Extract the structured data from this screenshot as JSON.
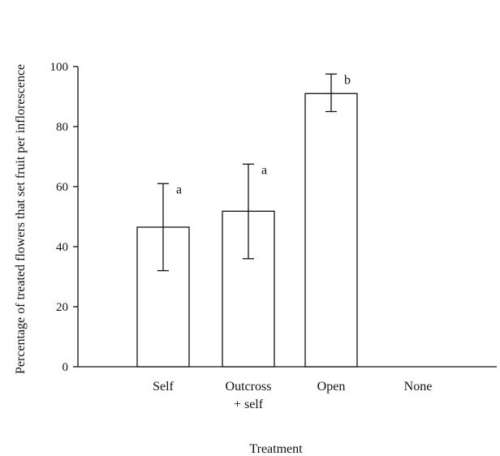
{
  "chart_data": {
    "type": "bar",
    "title": "",
    "xlabel": "Treatment",
    "ylabel": "Percentage of treated flowers that set fruit per inflorescence",
    "ylim": [
      0,
      100
    ],
    "yticks": [
      "0",
      "20",
      "40",
      "60",
      "80",
      "100"
    ],
    "categories": [
      [
        "Self"
      ],
      [
        "Outcross",
        "+ self"
      ],
      [
        "Open"
      ],
      [
        "None"
      ]
    ],
    "values": [
      46.5,
      51.8,
      91.0,
      0
    ],
    "error_low": [
      32.0,
      36.0,
      85.0,
      null
    ],
    "error_high": [
      61.0,
      67.5,
      97.5,
      null
    ],
    "significance_letters": [
      "a",
      "a",
      "b",
      ""
    ],
    "grid": false,
    "legend": "none",
    "bar_fill": "#ffffff",
    "bar_stroke": "#111111"
  }
}
